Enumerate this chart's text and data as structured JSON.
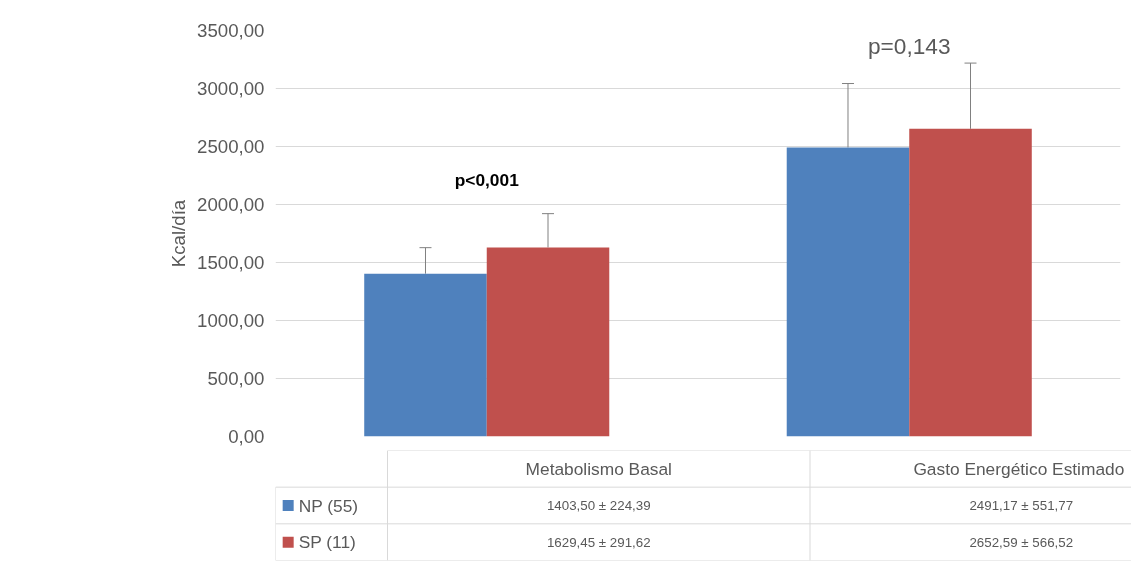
{
  "chart_data": {
    "type": "bar",
    "ylabel": "Kcal/día",
    "categories": [
      "Metabolismo Basal",
      "Gasto  Energético Estimado"
    ],
    "series": [
      {
        "name": "NP (55)",
        "color": "#4f81bd",
        "values": [
          1403.5,
          2491.17
        ],
        "errors": [
          [
            1403.5,
            1627.89
          ],
          [
            2491.17,
            3042.94
          ]
        ],
        "value_labels": [
          "1403,50 ± 224,39",
          "2491,17 ± 551,77"
        ]
      },
      {
        "name": "SP (11)",
        "color": "#c0504d",
        "values": [
          1629.45,
          2652.59
        ],
        "errors": [
          [
            1629.45,
            1921.07
          ],
          [
            2652.59,
            3219.11
          ]
        ],
        "value_labels": [
          "1629,45 ± 291,62",
          "2652,59 ± 566,52"
        ]
      }
    ],
    "ylim": [
      0,
      3500
    ],
    "yticks": [
      {
        "value": 0,
        "label": "0,00"
      },
      {
        "value": 500,
        "label": "500,00"
      },
      {
        "value": 1000,
        "label": "1000,00"
      },
      {
        "value": 1500,
        "label": "1500,00"
      },
      {
        "value": 2000,
        "label": "2000,00"
      },
      {
        "value": 2500,
        "label": "2500,00"
      },
      {
        "value": 3000,
        "label": "3000,00"
      },
      {
        "value": 3500,
        "label": "3500,00"
      }
    ],
    "grid": "y",
    "legend": "bottom",
    "annotations": [
      "p<0,001",
      "p=0,143"
    ]
  }
}
